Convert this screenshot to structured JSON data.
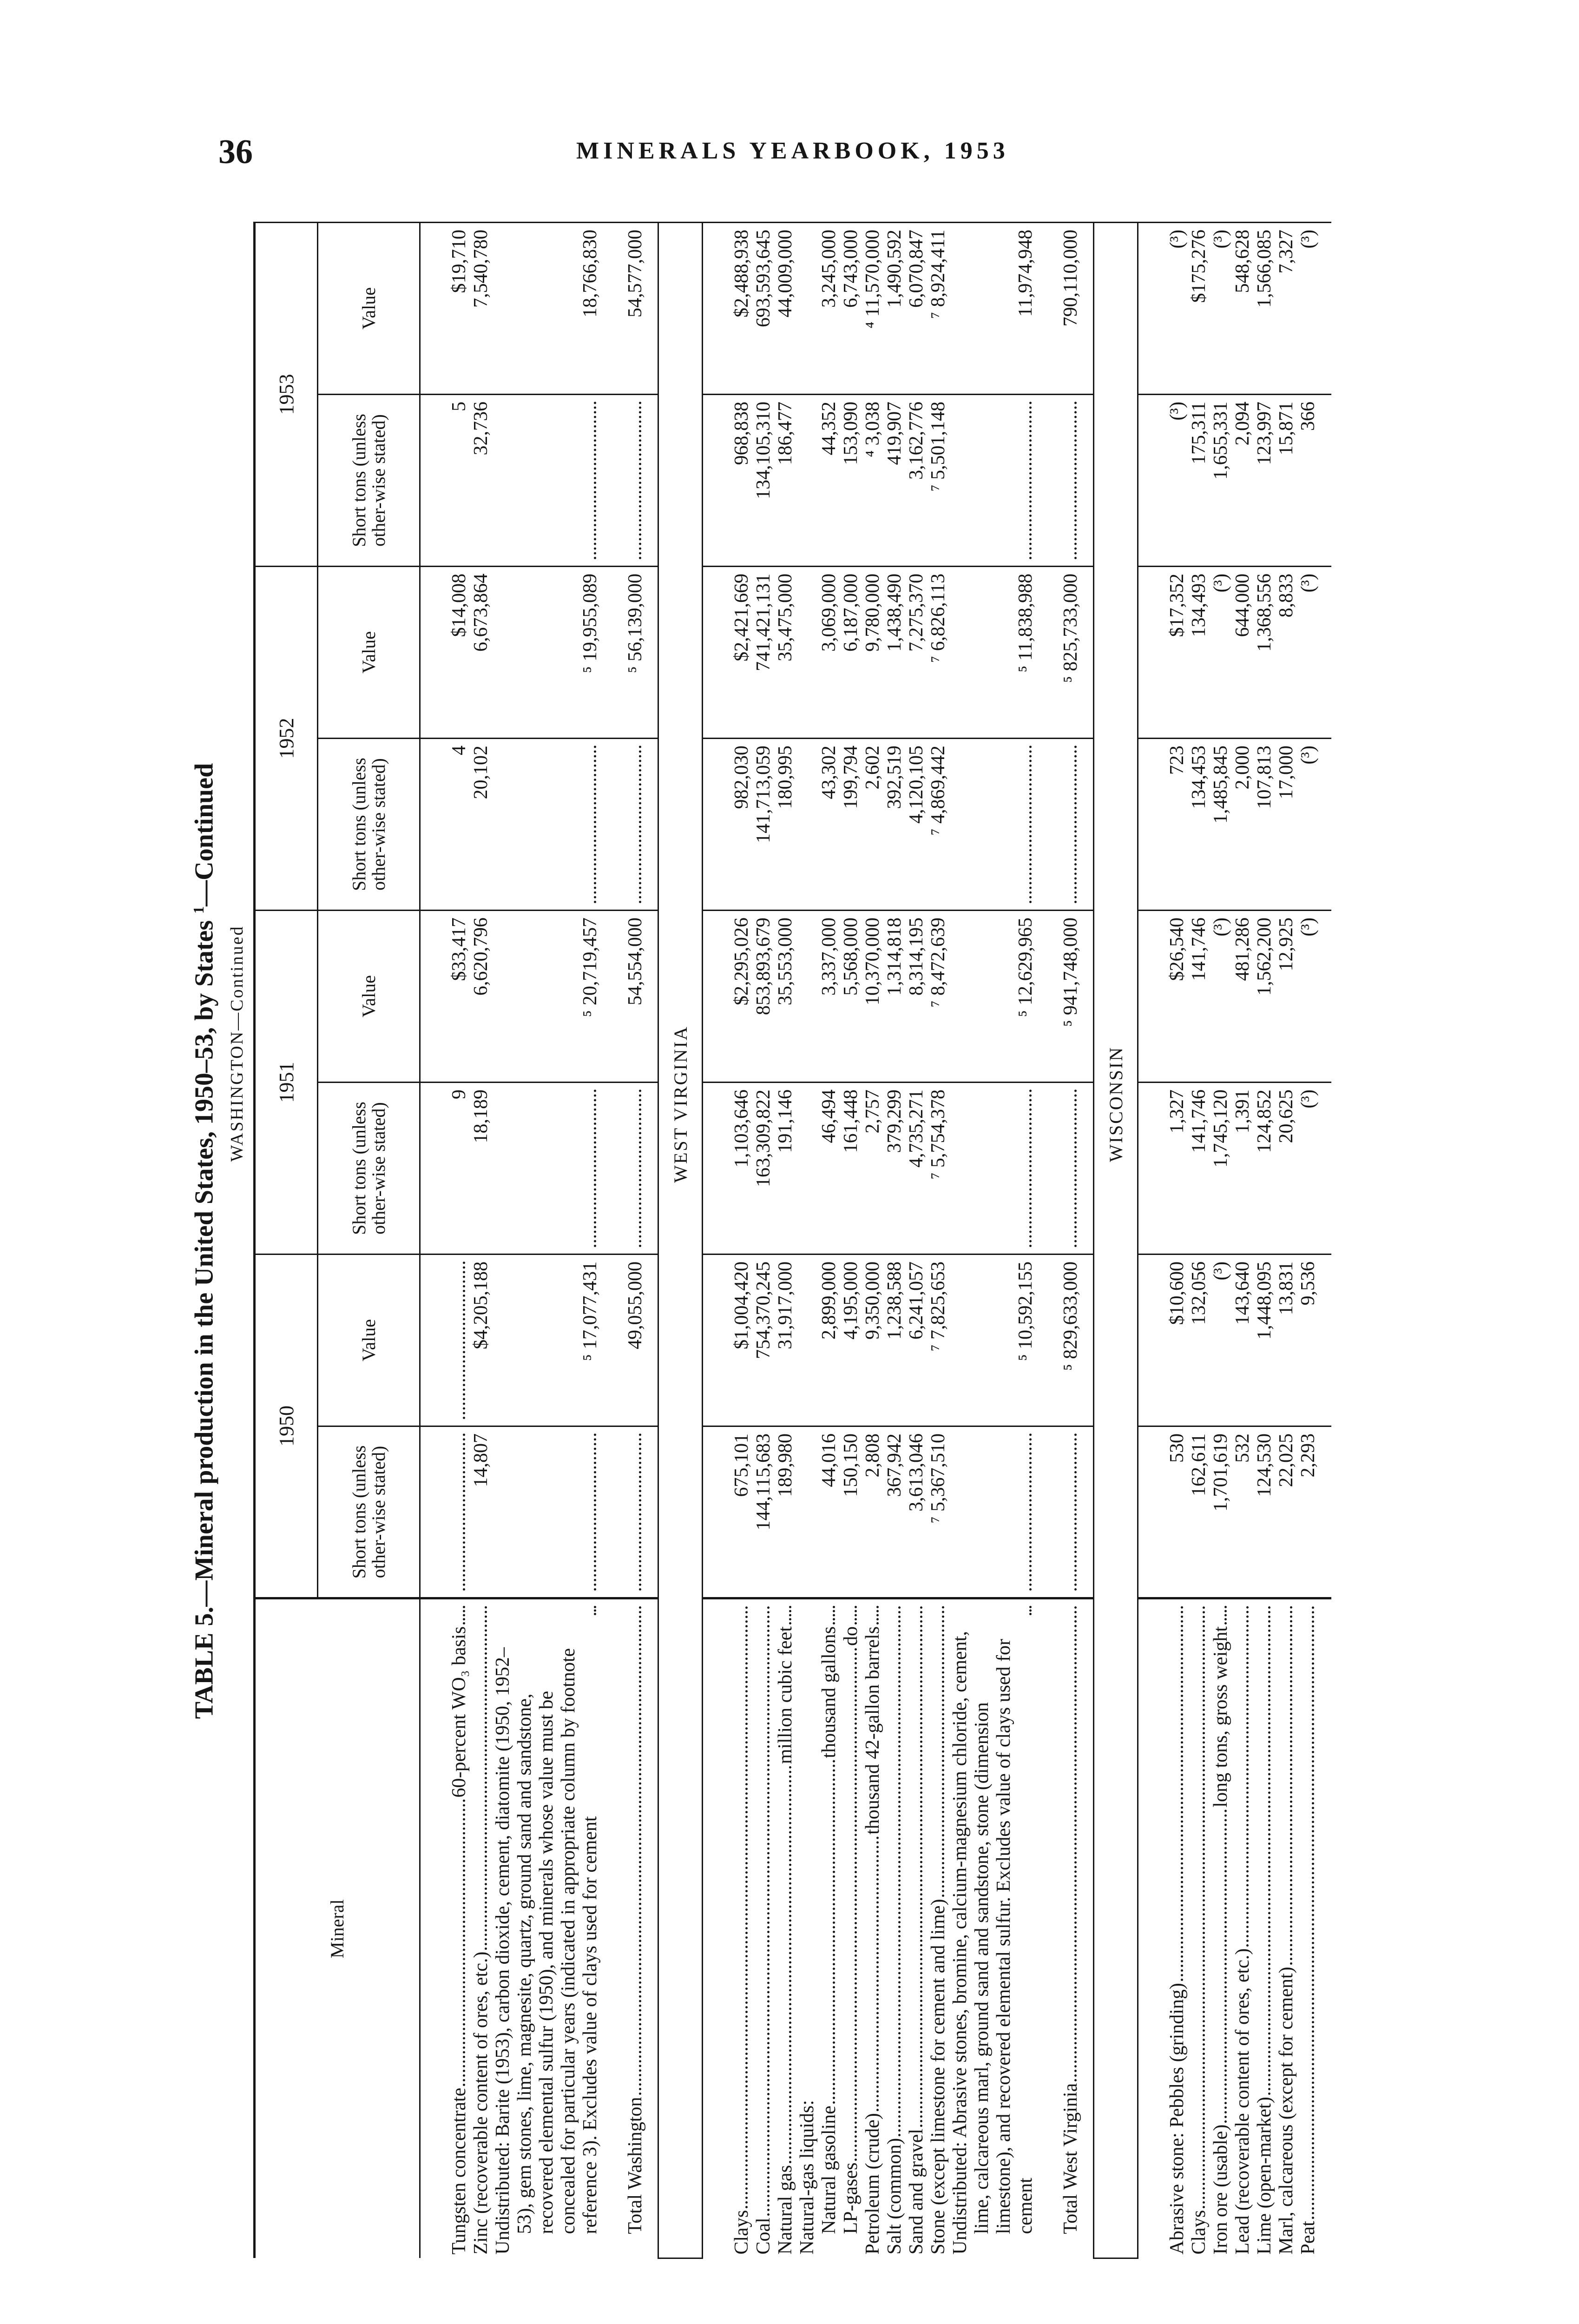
{
  "page": {
    "number": "36",
    "running_title": "MINERALS YEARBOOK, 1953"
  },
  "table": {
    "title": "TABLE 5.—Mineral production in the United States, 1950–53, by States",
    "title_note": "1",
    "title_suffix": "—Continued",
    "col_mineral": "Mineral",
    "years": [
      "1950",
      "1951",
      "1952",
      "1953"
    ],
    "col_tons": "Short tons (unless other-wise stated)",
    "col_value": "Value"
  },
  "sections": [
    {
      "name": "WASHINGTON—Continued",
      "rows": [
        {
          "mineral": "Tungsten concentrate",
          "unit": "60-percent WO₃ basis",
          "cells": [
            "",
            "",
            "9",
            "$33,417",
            "4",
            "$14,008",
            "5",
            "$19,710"
          ]
        },
        {
          "mineral": "Zinc (recoverable content of ores, etc.)",
          "unit": "",
          "cells": [
            "14,807",
            "$4,205,188",
            "18,189",
            "6,620,796",
            "20,102",
            "6,673,864",
            "32,736",
            "7,540,780"
          ]
        },
        {
          "mineral": "Undistributed: Barite (1953), carbon dioxide, cement, diatomite (1950, 1952–53), gem stones, lime, magnesite, quartz, ground sand and sandstone, recovered elemental sulfur (1950), and minerals whose value must be concealed for particular years (indicated in appropriate column by footnote reference 3). Excludes value of clays used for cement",
          "unit": "",
          "cells": [
            "",
            "⁵ 17,077,431",
            "",
            "⁵ 20,719,457",
            "",
            "⁵ 19,955,089",
            "",
            "18,766,830"
          ]
        },
        {
          "type": "total",
          "indent": 1,
          "mineral": "Total Washington",
          "unit": "",
          "cells": [
            "",
            "49,055,000",
            "",
            "54,554,000",
            "",
            "⁵ 56,139,000",
            "",
            "54,577,000"
          ]
        }
      ]
    },
    {
      "name": "WEST VIRGINIA",
      "rows": [
        {
          "mineral": "Clays",
          "unit": "",
          "cells": [
            "675,101",
            "$1,004,420",
            "1,103,646",
            "$2,295,026",
            "982,030",
            "$2,421,669",
            "968,838",
            "$2,488,938"
          ]
        },
        {
          "mineral": "Coal",
          "unit": "",
          "cells": [
            "144,115,683",
            "754,370,245",
            "163,309,822",
            "853,893,679",
            "141,713,059",
            "741,421,131",
            "134,105,310",
            "693,593,645"
          ]
        },
        {
          "mineral": "Natural gas",
          "unit": "million cubic feet",
          "cells": [
            "189,980",
            "31,917,000",
            "191,146",
            "35,553,000",
            "180,995",
            "35,475,000",
            "186,477",
            "44,009,000"
          ]
        },
        {
          "mineral": "Natural-gas liquids:",
          "unit": "",
          "noleader": true,
          "cells": [
            null,
            null,
            null,
            null,
            null,
            null,
            null,
            null
          ]
        },
        {
          "indent": 1,
          "mineral": "Natural gasoline",
          "unit": "thousand gallons",
          "cells": [
            "44,016",
            "2,899,000",
            "46,494",
            "3,337,000",
            "43,302",
            "3,069,000",
            "44,352",
            "3,245,000"
          ]
        },
        {
          "indent": 1,
          "mineral": "LP-gases",
          "unit": "do",
          "cells": [
            "150,150",
            "4,195,000",
            "161,448",
            "5,568,000",
            "199,794",
            "6,187,000",
            "153,090",
            "6,743,000"
          ]
        },
        {
          "mineral": "Petroleum (crude)",
          "unit": "thousand 42-gallon barrels",
          "cells": [
            "2,808",
            "9,350,000",
            "2,757",
            "10,370,000",
            "2,602",
            "9,780,000",
            "⁴ 3,038",
            "⁴ 11,570,000"
          ]
        },
        {
          "mineral": "Salt (common)",
          "unit": "",
          "cells": [
            "367,942",
            "1,238,588",
            "379,299",
            "1,314,818",
            "392,519",
            "1,438,490",
            "419,907",
            "1,490,592"
          ]
        },
        {
          "mineral": "Sand and gravel",
          "unit": "",
          "cells": [
            "3,613,046",
            "6,241,057",
            "4,735,271",
            "8,314,195",
            "4,120,105",
            "7,275,370",
            "3,162,776",
            "6,070,847"
          ]
        },
        {
          "mineral": "Stone (except limestone for cement and lime)",
          "unit": "",
          "cells": [
            "⁷ 5,367,510",
            "⁷ 7,825,653",
            "⁷ 5,754,378",
            "⁷ 8,472,639",
            "⁷ 4,869,442",
            "⁷ 6,826,113",
            "⁷ 5,501,148",
            "⁷ 8,924,411"
          ]
        },
        {
          "mineral": "Undistributed: Abrasive stones, bromine, calcium-magnesium chloride, cement, lime, calcareous marl, ground sand and sandstone, stone (dimension limestone), and recovered elemental sulfur. Excludes value of clays used for cement",
          "unit": "",
          "cells": [
            "",
            "⁵ 10,592,155",
            "",
            "⁵ 12,629,965",
            "",
            "⁵ 11,838,988",
            "",
            "11,974,948"
          ]
        },
        {
          "type": "total",
          "indent": 1,
          "mineral": "Total West Virginia",
          "unit": "",
          "cells": [
            "",
            "⁵ 829,633,000",
            "",
            "⁵ 941,748,000",
            "",
            "⁵ 825,733,000",
            "",
            "790,110,000"
          ]
        }
      ]
    },
    {
      "name": "WISCONSIN",
      "rows": [
        {
          "mineral": "Abrasive stone: Pebbles (grinding)",
          "unit": "",
          "cells": [
            "530",
            "$10,600",
            "1,327",
            "$26,540",
            "723",
            "$17,352",
            "(³)",
            "(³)"
          ]
        },
        {
          "mineral": "Clays",
          "unit": "",
          "cells": [
            "162,611",
            "132,056",
            "141,746",
            "141,746",
            "134,453",
            "134,493",
            "175,311",
            "$175,276"
          ]
        },
        {
          "mineral": "Iron ore (usable)",
          "unit": "long tons, gross weight",
          "cells": [
            "1,701,619",
            "(³)",
            "1,745,120",
            "(³)",
            "1,485,845",
            "(³)",
            "1,655,331",
            "(³)"
          ]
        },
        {
          "mineral": "Lead (recoverable content of ores, etc.)",
          "unit": "",
          "cells": [
            "532",
            "143,640",
            "1,391",
            "481,286",
            "2,000",
            "644,000",
            "2,094",
            "548,628"
          ]
        },
        {
          "mineral": "Lime (open-market)",
          "unit": "",
          "cells": [
            "124,530",
            "1,448,095",
            "124,852",
            "1,562,200",
            "107,813",
            "1,368,556",
            "123,997",
            "1,566,085"
          ]
        },
        {
          "mineral": "Marl, calcareous (except for cement)",
          "unit": "",
          "cells": [
            "22,025",
            "13,831",
            "20,625",
            "12,925",
            "17,000",
            "8,833",
            "15,871",
            "7,327"
          ]
        },
        {
          "mineral": "Peat",
          "unit": "",
          "cells": [
            "2,293",
            "9,536",
            "(³)",
            "(³)",
            "(³)",
            "(³)",
            "366",
            "(³)"
          ]
        }
      ]
    }
  ]
}
